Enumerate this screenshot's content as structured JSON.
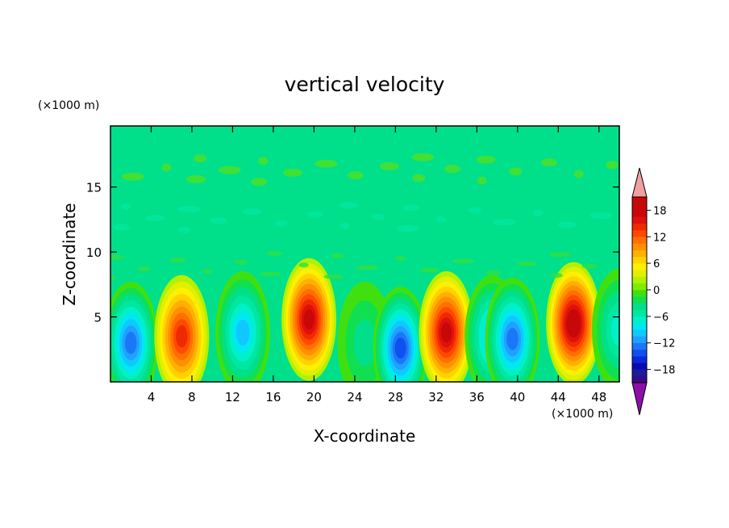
{
  "chart_data": {
    "type": "heatmap",
    "title": "vertical velocity",
    "xlabel": "X-coordinate",
    "ylabel": "Z-coordinate",
    "x_unit": "(×1000 m)",
    "y_unit": "(×1000 m)",
    "xlim": [
      0,
      50
    ],
    "ylim": [
      0,
      19.7
    ],
    "x_ticks": [
      4,
      8,
      12,
      16,
      20,
      24,
      28,
      32,
      36,
      40,
      44,
      48
    ],
    "y_ticks": [
      5,
      10,
      15
    ],
    "colorbar": {
      "levels": [
        -21,
        -19.5,
        -18,
        -16.5,
        -15,
        -13.5,
        -12,
        -10.5,
        -9,
        -7.5,
        -6,
        -4.5,
        -3,
        -1.5,
        0,
        1.5,
        3,
        4.5,
        6,
        7.5,
        9,
        10.5,
        12,
        13.5,
        15,
        16.5,
        18,
        19.5,
        21
      ],
      "tick_values": [
        -18,
        -12,
        -6,
        0,
        6,
        12,
        18
      ],
      "tick_labels": [
        "−18",
        "−12",
        "−6",
        "0",
        "6",
        "12",
        "18"
      ],
      "extend": "both",
      "under_color": "#8c0fa8",
      "over_color": "#f0a0a0"
    },
    "cells": [
      {
        "x": 2,
        "z": 3,
        "w": -14
      },
      {
        "x": 7,
        "z": 3.5,
        "w": 14
      },
      {
        "x": 13,
        "z": 3.8,
        "w": -11
      },
      {
        "x": 19.5,
        "z": 4.8,
        "w": 17
      },
      {
        "x": 25,
        "z": 3,
        "w": -4
      },
      {
        "x": 28.5,
        "z": 2.6,
        "w": -15
      },
      {
        "x": 33,
        "z": 3.8,
        "w": 16
      },
      {
        "x": 37.5,
        "z": 3.5,
        "w": -11
      },
      {
        "x": 39.5,
        "z": 3.3,
        "w": -14
      },
      {
        "x": 45.5,
        "z": 4.5,
        "w": 18
      },
      {
        "x": 50,
        "z": 4,
        "w": -7
      }
    ]
  }
}
